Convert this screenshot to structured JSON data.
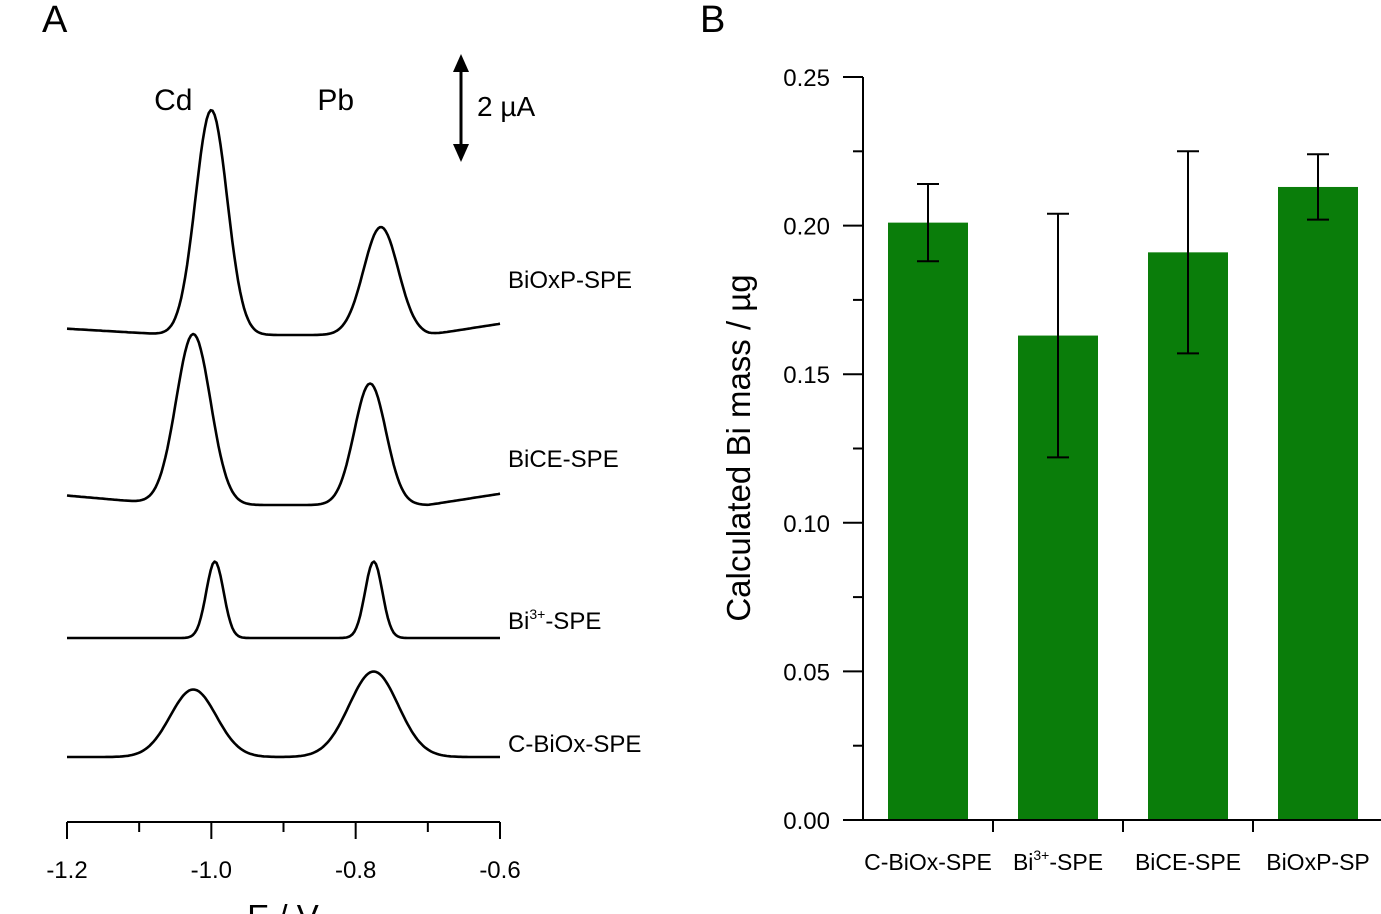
{
  "chart_data": [
    {
      "type": "line",
      "panel": "A",
      "xlabel": "E / V",
      "ylabel": "",
      "xlim": [
        -1.2,
        -0.6
      ],
      "x_ticks": [
        "-1.2",
        "-1.0",
        "-0.8",
        "-0.6"
      ],
      "grid": false,
      "peak_labels": [
        {
          "text": "Cd",
          "x": -1.0
        },
        {
          "text": "Pb",
          "x": -0.775
        }
      ],
      "scale_bar": {
        "value": 2,
        "label": "2 µA"
      },
      "series": [
        {
          "name": "BiOxP-SPE",
          "baseline_left": 0.4,
          "peaks": [
            {
              "x": -1.0,
              "height": 5.0
            },
            {
              "x": -0.765,
              "height": 2.4
            }
          ]
        },
        {
          "name": "BiCE-SPE",
          "baseline_left": 0.6,
          "peaks": [
            {
              "x": -1.025,
              "height": 3.8
            },
            {
              "x": -0.78,
              "height": 2.7
            }
          ]
        },
        {
          "name": "Bi3+-SPE",
          "name_base": "Bi",
          "name_sup": "3+",
          "name_suffix": "-SPE",
          "baseline_left": 0.0,
          "peaks": [
            {
              "x": -0.995,
              "height": 1.7
            },
            {
              "x": -0.775,
              "height": 1.7
            }
          ]
        },
        {
          "name": "C-BiOx-SPE",
          "baseline_left": 0.0,
          "peaks": [
            {
              "x": -1.025,
              "height": 1.5
            },
            {
              "x": -0.775,
              "height": 1.9
            }
          ]
        }
      ]
    },
    {
      "type": "bar",
      "panel": "B",
      "ylabel": "Calculated Bi mass / µg",
      "xlabel": "",
      "ylim": [
        0,
        0.25
      ],
      "y_ticks": [
        "0.00",
        "0.05",
        "0.10",
        "0.15",
        "0.20",
        "0.25"
      ],
      "grid": false,
      "categories": [
        "C-BiOx-SPE",
        "Bi3+-SPE",
        "BiCE-SPE",
        "BiOxP-SPE"
      ],
      "category_display": [
        {
          "text": "C-BiOx-SPE"
        },
        {
          "base": "Bi",
          "sup": "3+",
          "suffix": "-SPE"
        },
        {
          "text": "BiCE-SPE"
        },
        {
          "text": "BiOxP-SP"
        }
      ],
      "values": [
        0.201,
        0.163,
        0.191,
        0.213
      ],
      "errors": [
        0.013,
        0.041,
        0.034,
        0.011
      ],
      "bar_color": "#0a7d0a"
    }
  ],
  "colors": {
    "bar": "#0a7d0a",
    "line": "#000000"
  }
}
